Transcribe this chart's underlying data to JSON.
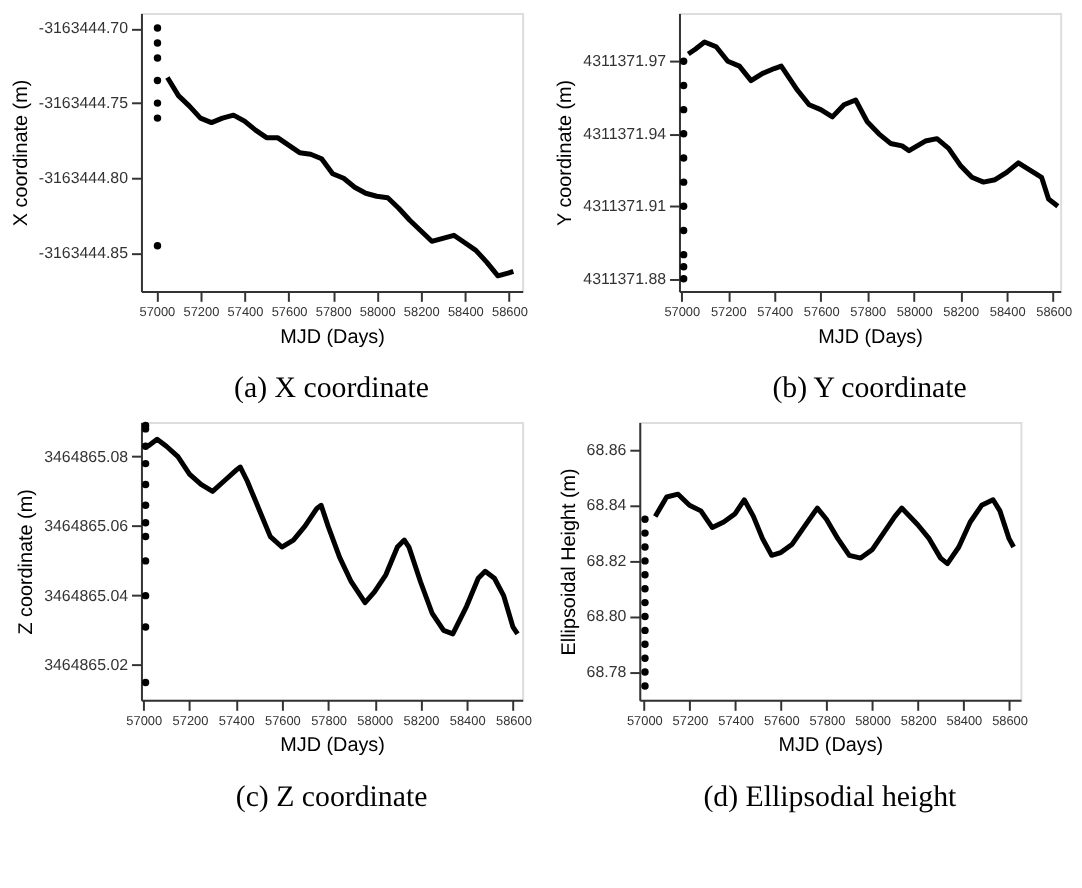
{
  "chart_data": [
    {
      "type": "line",
      "title": "(a) X coordinate",
      "xlabel": "MJD (Days)",
      "ylabel": "X coordinate (m)",
      "grid": false,
      "xlim": [
        56930,
        58660
      ],
      "xticks": [
        57000,
        57200,
        57400,
        57600,
        57800,
        58000,
        58200,
        58400,
        58600
      ],
      "ylim": [
        -3163444.875,
        -3163444.69
      ],
      "yticks": [
        {
          "value": -3163444.85,
          "label": "-3163444.85"
        },
        {
          "value": -3163444.8,
          "label": "-3163444.80"
        },
        {
          "value": -3163444.75,
          "label": "-3163444.75"
        },
        {
          "value": -3163444.7,
          "label": "-3163444.70"
        }
      ],
      "series": [
        {
          "type": "scatter",
          "marker": "circle",
          "color": "#000000",
          "x": [
            57005,
            57005,
            57005,
            57005,
            57005,
            57005,
            57005
          ],
          "values": [
            -3163444.7,
            -3163444.71,
            -3163444.72,
            -3163444.735,
            -3163444.75,
            -3163444.76,
            -3163444.845
          ]
        },
        {
          "color": "#000000",
          "x": [
            57050,
            57100,
            57150,
            57200,
            57250,
            57300,
            57350,
            57400,
            57450,
            57500,
            57550,
            57600,
            57650,
            57700,
            57750,
            57800,
            57850,
            57900,
            57950,
            58000,
            58050,
            58100,
            58150,
            58200,
            58250,
            58300,
            58350,
            58400,
            58450,
            58500,
            58550,
            58600,
            58620
          ],
          "values": [
            -3163444.733,
            -3163444.745,
            -3163444.752,
            -3163444.76,
            -3163444.763,
            -3163444.76,
            -3163444.758,
            -3163444.762,
            -3163444.768,
            -3163444.773,
            -3163444.773,
            -3163444.778,
            -3163444.783,
            -3163444.784,
            -3163444.787,
            -3163444.797,
            -3163444.8,
            -3163444.806,
            -3163444.81,
            -3163444.812,
            -3163444.813,
            -3163444.82,
            -3163444.828,
            -3163444.835,
            -3163444.842,
            -3163444.84,
            -3163444.838,
            -3163444.843,
            -3163444.848,
            -3163444.856,
            -3163444.865,
            -3163444.863,
            -3163444.862
          ]
        }
      ]
    },
    {
      "type": "line",
      "title": "(b) Y coordinate",
      "xlabel": "MJD (Days)",
      "ylabel": "Y coordinate (m)",
      "grid": false,
      "xlim": [
        56990,
        58630
      ],
      "xticks": [
        57000,
        57200,
        57400,
        57600,
        57800,
        58000,
        58200,
        58400,
        58600
      ],
      "ylim": [
        4311371.875,
        4311371.99
      ],
      "yticks": [
        {
          "value": 4311371.88,
          "label": "4311371.88"
        },
        {
          "value": 4311371.91,
          "label": "4311371.91"
        },
        {
          "value": 4311371.94,
          "label": "4311371.94"
        },
        {
          "value": 4311371.97,
          "label": "4311371.97"
        }
      ],
      "series": [
        {
          "type": "scatter",
          "marker": "circle",
          "color": "#000000",
          "x": [
            57010,
            57010,
            57010,
            57010,
            57010,
            57010,
            57010,
            57010,
            57010,
            57010,
            57010
          ],
          "values": [
            4311371.88,
            4311371.885,
            4311371.89,
            4311371.9,
            4311371.91,
            4311371.92,
            4311371.93,
            4311371.94,
            4311371.95,
            4311371.96,
            4311371.97
          ]
        },
        {
          "color": "#000000",
          "x": [
            57030,
            57060,
            57100,
            57150,
            57200,
            57250,
            57300,
            57350,
            57400,
            57430,
            57500,
            57550,
            57600,
            57650,
            57700,
            57750,
            57800,
            57850,
            57900,
            57950,
            57980,
            58050,
            58100,
            58150,
            58200,
            58250,
            58300,
            58350,
            58400,
            58450,
            58500,
            58550,
            58580,
            58620
          ],
          "values": [
            4311371.973,
            4311371.975,
            4311371.978,
            4311371.976,
            4311371.97,
            4311371.968,
            4311371.962,
            4311371.965,
            4311371.967,
            4311371.968,
            4311371.958,
            4311371.952,
            4311371.95,
            4311371.947,
            4311371.952,
            4311371.954,
            4311371.945,
            4311371.94,
            4311371.936,
            4311371.935,
            4311371.933,
            4311371.937,
            4311371.938,
            4311371.934,
            4311371.927,
            4311371.922,
            4311371.92,
            4311371.921,
            4311371.924,
            4311371.928,
            4311371.925,
            4311371.922,
            4311371.913,
            4311371.91
          ]
        }
      ]
    },
    {
      "type": "line",
      "title": "(c) Z coordinate",
      "xlabel": "MJD (Days)",
      "ylabel": "Z coordinate (m)",
      "grid": false,
      "xlim": [
        56990,
        58640
      ],
      "xticks": [
        57000,
        57200,
        57400,
        57600,
        57800,
        58000,
        58200,
        58400,
        58600
      ],
      "ylim": [
        3464865.01,
        3464865.09
      ],
      "yticks": [
        {
          "value": 3464865.02,
          "label": "3464865.02"
        },
        {
          "value": 3464865.04,
          "label": "3464865.04"
        },
        {
          "value": 3464865.06,
          "label": "3464865.06"
        },
        {
          "value": 3464865.08,
          "label": "3464865.08"
        }
      ],
      "series": [
        {
          "type": "scatter",
          "marker": "circle",
          "color": "#000000",
          "x": [
            57010,
            57010,
            57010,
            57010,
            57010,
            57010,
            57010,
            57010,
            57010,
            57010,
            57010,
            57010
          ],
          "values": [
            3464865.089,
            3464865.088,
            3464865.083,
            3464865.078,
            3464865.072,
            3464865.066,
            3464865.061,
            3464865.057,
            3464865.05,
            3464865.04,
            3464865.031,
            3464865.015
          ]
        },
        {
          "color": "#000000",
          "x": [
            57020,
            57060,
            57100,
            57150,
            57200,
            57250,
            57300,
            57350,
            57400,
            57420,
            57450,
            57500,
            57550,
            57600,
            57650,
            57700,
            57750,
            57770,
            57800,
            57850,
            57900,
            57960,
            58000,
            58050,
            58100,
            58130,
            58150,
            58200,
            58250,
            58300,
            58340,
            58400,
            58450,
            58480,
            58520,
            58560,
            58600,
            58620
          ],
          "values": [
            3464865.083,
            3464865.085,
            3464865.083,
            3464865.08,
            3464865.075,
            3464865.072,
            3464865.07,
            3464865.073,
            3464865.076,
            3464865.077,
            3464865.073,
            3464865.065,
            3464865.057,
            3464865.054,
            3464865.056,
            3464865.06,
            3464865.065,
            3464865.066,
            3464865.06,
            3464865.051,
            3464865.044,
            3464865.038,
            3464865.041,
            3464865.046,
            3464865.054,
            3464865.056,
            3464865.054,
            3464865.044,
            3464865.035,
            3464865.03,
            3464865.029,
            3464865.037,
            3464865.045,
            3464865.047,
            3464865.045,
            3464865.04,
            3464865.031,
            3464865.029
          ]
        }
      ]
    },
    {
      "type": "line",
      "title": "(d) Ellipsodial height",
      "xlabel": "MJD (Days)",
      "ylabel": "Ellipsoidal Height (m)",
      "grid": false,
      "xlim": [
        56980,
        58650
      ],
      "xticks": [
        57000,
        57200,
        57400,
        57600,
        57800,
        58000,
        58200,
        58400,
        58600
      ],
      "ylim": [
        68.77,
        68.87
      ],
      "yticks": [
        {
          "value": 68.78,
          "label": "68.78"
        },
        {
          "value": 68.8,
          "label": "68.80"
        },
        {
          "value": 68.82,
          "label": "68.82"
        },
        {
          "value": 68.84,
          "label": "68.84"
        },
        {
          "value": 68.86,
          "label": "68.86"
        }
      ],
      "series": [
        {
          "type": "scatter",
          "marker": "circle",
          "color": "#000000",
          "x": [
            57005,
            57005,
            57005,
            57005,
            57005,
            57005,
            57005,
            57005,
            57005,
            57005,
            57005,
            57005,
            57005
          ],
          "values": [
            68.775,
            68.78,
            68.785,
            68.79,
            68.795,
            68.8,
            68.805,
            68.81,
            68.815,
            68.82,
            68.825,
            68.83,
            68.835
          ]
        },
        {
          "color": "#000000",
          "x": [
            57050,
            57100,
            57150,
            57200,
            57250,
            57300,
            57350,
            57400,
            57440,
            57480,
            57520,
            57560,
            57600,
            57650,
            57700,
            57760,
            57800,
            57850,
            57900,
            57950,
            58000,
            58050,
            58100,
            58130,
            58200,
            58250,
            58300,
            58330,
            58380,
            58430,
            58480,
            58530,
            58560,
            58600,
            58620
          ],
          "values": [
            68.836,
            68.843,
            68.844,
            68.84,
            68.838,
            68.832,
            68.834,
            68.837,
            68.842,
            68.836,
            68.828,
            68.822,
            68.823,
            68.826,
            68.832,
            68.839,
            68.835,
            68.828,
            68.822,
            68.821,
            68.824,
            68.83,
            68.836,
            68.839,
            68.833,
            68.828,
            68.821,
            68.819,
            68.825,
            68.834,
            68.84,
            68.842,
            68.838,
            68.828,
            68.825
          ]
        }
      ]
    }
  ]
}
